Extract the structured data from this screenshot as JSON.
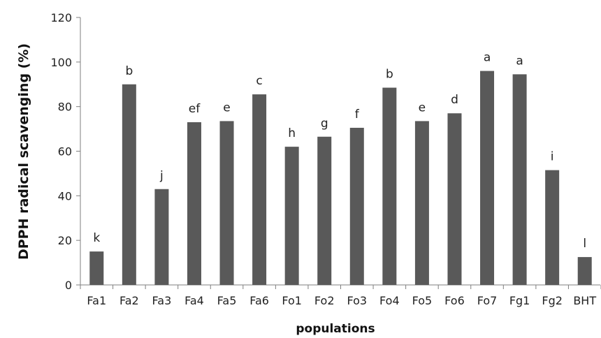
{
  "chart_data": {
    "type": "bar",
    "title": "",
    "xlabel": "populations",
    "ylabel": "DPPH radical scavenging (%)",
    "ylim": [
      0,
      120
    ],
    "yticks": [
      0,
      20,
      40,
      60,
      80,
      100,
      120
    ],
    "grid": false,
    "legend": "none",
    "bar_color": "#595959",
    "categories": [
      "Fa1",
      "Fa2",
      "Fa3",
      "Fa4",
      "Fa5",
      "Fa6",
      "Fo1",
      "Fo2",
      "Fo3",
      "Fo4",
      "Fo5",
      "Fo6",
      "Fo7",
      "Fg1",
      "Fg2",
      "BHT"
    ],
    "values": [
      15,
      90,
      43,
      73,
      73.5,
      85.5,
      62,
      66.5,
      70.5,
      88.5,
      73.5,
      77,
      96,
      94.5,
      51.5,
      12.5
    ],
    "labels": [
      "k",
      "b",
      "j",
      "ef",
      "e",
      "c",
      "h",
      "g",
      "f",
      "b",
      "e",
      "d",
      "a",
      "a",
      "i",
      "l"
    ]
  }
}
